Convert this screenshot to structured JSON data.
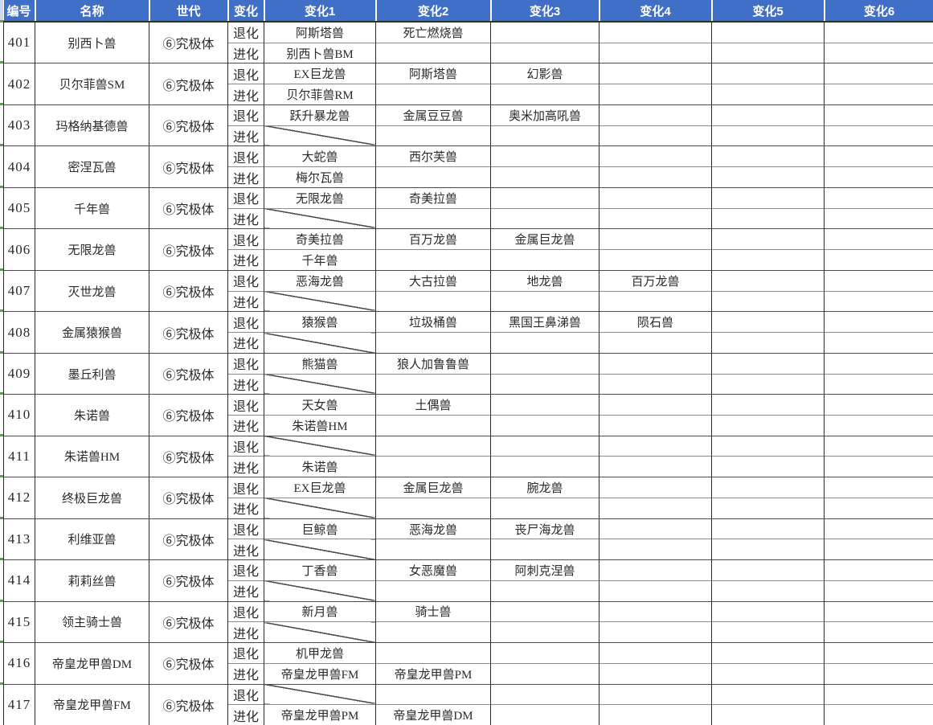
{
  "header": {
    "columns": [
      "编号",
      "名称",
      "世代",
      "变化",
      "变化1",
      "变化2",
      "变化3",
      "变化4",
      "变化5",
      "变化6"
    ]
  },
  "colors": {
    "header_bg": "#3f6fc7",
    "header_text": "#ffffff",
    "grid_dark": "#2b2b2b",
    "group_line": "#4a4a4a",
    "subrow_line": "#8a8a8a",
    "cell_text": "#2a2a2a",
    "tick_green": "#5f9e52"
  },
  "rows": [
    {
      "id": "401",
      "name": "别西卜兽",
      "gen": "⑥究极体",
      "degenerate": {
        "label": "退化",
        "diagonal": false,
        "changes": [
          "阿斯塔兽",
          "死亡燃烧兽",
          "",
          "",
          "",
          ""
        ]
      },
      "evolve": {
        "label": "进化",
        "diagonal": false,
        "changes": [
          "别西卜兽BM",
          "",
          "",
          "",
          "",
          ""
        ]
      }
    },
    {
      "id": "402",
      "name": "贝尔菲兽SM",
      "gen": "⑥究极体",
      "degenerate": {
        "label": "退化",
        "diagonal": false,
        "changes": [
          "EX巨龙兽",
          "阿斯塔兽",
          "幻影兽",
          "",
          "",
          ""
        ]
      },
      "evolve": {
        "label": "进化",
        "diagonal": false,
        "changes": [
          "贝尔菲兽RM",
          "",
          "",
          "",
          "",
          ""
        ]
      }
    },
    {
      "id": "403",
      "name": "玛格纳基德兽",
      "gen": "⑥究极体",
      "degenerate": {
        "label": "退化",
        "diagonal": false,
        "changes": [
          "跃升暴龙兽",
          "金属豆豆兽",
          "奥米加高吼兽",
          "",
          "",
          ""
        ]
      },
      "evolve": {
        "label": "进化",
        "diagonal": true,
        "changes": [
          "",
          "",
          "",
          "",
          "",
          ""
        ]
      }
    },
    {
      "id": "404",
      "name": "密涅瓦兽",
      "gen": "⑥究极体",
      "degenerate": {
        "label": "退化",
        "diagonal": false,
        "changes": [
          "大蛇兽",
          "西尔芙兽",
          "",
          "",
          "",
          ""
        ]
      },
      "evolve": {
        "label": "进化",
        "diagonal": false,
        "changes": [
          "梅尔瓦兽",
          "",
          "",
          "",
          "",
          ""
        ]
      }
    },
    {
      "id": "405",
      "name": "千年兽",
      "gen": "⑥究极体",
      "degenerate": {
        "label": "退化",
        "diagonal": false,
        "changes": [
          "无限龙兽",
          "奇美拉兽",
          "",
          "",
          "",
          ""
        ]
      },
      "evolve": {
        "label": "进化",
        "diagonal": true,
        "changes": [
          "",
          "",
          "",
          "",
          "",
          ""
        ]
      }
    },
    {
      "id": "406",
      "name": "无限龙兽",
      "gen": "⑥究极体",
      "degenerate": {
        "label": "退化",
        "diagonal": false,
        "changes": [
          "奇美拉兽",
          "百万龙兽",
          "金属巨龙兽",
          "",
          "",
          ""
        ]
      },
      "evolve": {
        "label": "进化",
        "diagonal": false,
        "changes": [
          "千年兽",
          "",
          "",
          "",
          "",
          ""
        ]
      }
    },
    {
      "id": "407",
      "name": "灭世龙兽",
      "gen": "⑥究极体",
      "degenerate": {
        "label": "退化",
        "diagonal": false,
        "changes": [
          "恶海龙兽",
          "大古拉兽",
          "地龙兽",
          "百万龙兽",
          "",
          ""
        ]
      },
      "evolve": {
        "label": "进化",
        "diagonal": true,
        "changes": [
          "",
          "",
          "",
          "",
          "",
          ""
        ]
      }
    },
    {
      "id": "408",
      "name": "金属猿猴兽",
      "gen": "⑥究极体",
      "degenerate": {
        "label": "退化",
        "diagonal": false,
        "changes": [
          "猿猴兽",
          "垃圾桶兽",
          "黑国王鼻涕兽",
          "陨石兽",
          "",
          ""
        ]
      },
      "evolve": {
        "label": "进化",
        "diagonal": true,
        "changes": [
          "",
          "",
          "",
          "",
          "",
          ""
        ]
      }
    },
    {
      "id": "409",
      "name": "墨丘利兽",
      "gen": "⑥究极体",
      "degenerate": {
        "label": "退化",
        "diagonal": false,
        "changes": [
          "熊猫兽",
          "狼人加鲁鲁兽",
          "",
          "",
          "",
          ""
        ]
      },
      "evolve": {
        "label": "进化",
        "diagonal": true,
        "changes": [
          "",
          "",
          "",
          "",
          "",
          ""
        ]
      }
    },
    {
      "id": "410",
      "name": "朱诺兽",
      "gen": "⑥究极体",
      "degenerate": {
        "label": "退化",
        "diagonal": false,
        "changes": [
          "天女兽",
          "土偶兽",
          "",
          "",
          "",
          ""
        ]
      },
      "evolve": {
        "label": "进化",
        "diagonal": false,
        "changes": [
          "朱诺兽HM",
          "",
          "",
          "",
          "",
          ""
        ]
      }
    },
    {
      "id": "411",
      "name": "朱诺兽HM",
      "gen": "⑥究极体",
      "degenerate": {
        "label": "退化",
        "diagonal": true,
        "changes": [
          "",
          "",
          "",
          "",
          "",
          ""
        ]
      },
      "evolve": {
        "label": "进化",
        "diagonal": false,
        "changes": [
          "朱诺兽",
          "",
          "",
          "",
          "",
          ""
        ]
      }
    },
    {
      "id": "412",
      "name": "终极巨龙兽",
      "gen": "⑥究极体",
      "degenerate": {
        "label": "退化",
        "diagonal": false,
        "changes": [
          "EX巨龙兽",
          "金属巨龙兽",
          "腕龙兽",
          "",
          "",
          ""
        ]
      },
      "evolve": {
        "label": "进化",
        "diagonal": true,
        "changes": [
          "",
          "",
          "",
          "",
          "",
          ""
        ]
      }
    },
    {
      "id": "413",
      "name": "利维亚兽",
      "gen": "⑥究极体",
      "degenerate": {
        "label": "退化",
        "diagonal": false,
        "changes": [
          "巨鲸兽",
          "恶海龙兽",
          "丧尸海龙兽",
          "",
          "",
          ""
        ]
      },
      "evolve": {
        "label": "进化",
        "diagonal": true,
        "changes": [
          "",
          "",
          "",
          "",
          "",
          ""
        ]
      }
    },
    {
      "id": "414",
      "name": "莉莉丝兽",
      "gen": "⑥究极体",
      "degenerate": {
        "label": "退化",
        "diagonal": false,
        "changes": [
          "丁香兽",
          "女恶魔兽",
          "阿刺克涅兽",
          "",
          "",
          ""
        ]
      },
      "evolve": {
        "label": "进化",
        "diagonal": true,
        "changes": [
          "",
          "",
          "",
          "",
          "",
          ""
        ]
      }
    },
    {
      "id": "415",
      "name": "领主骑士兽",
      "gen": "⑥究极体",
      "degenerate": {
        "label": "退化",
        "diagonal": false,
        "changes": [
          "新月兽",
          "骑士兽",
          "",
          "",
          "",
          ""
        ]
      },
      "evolve": {
        "label": "进化",
        "diagonal": true,
        "changes": [
          "",
          "",
          "",
          "",
          "",
          ""
        ]
      }
    },
    {
      "id": "416",
      "name": "帝皇龙甲兽DM",
      "gen": "⑥究极体",
      "degenerate": {
        "label": "退化",
        "diagonal": false,
        "changes": [
          "机甲龙兽",
          "",
          "",
          "",
          "",
          ""
        ]
      },
      "evolve": {
        "label": "进化",
        "diagonal": false,
        "changes": [
          "帝皇龙甲兽FM",
          "帝皇龙甲兽PM",
          "",
          "",
          "",
          ""
        ]
      }
    },
    {
      "id": "417",
      "name": "帝皇龙甲兽FM",
      "gen": "⑥究极体",
      "degenerate": {
        "label": "退化",
        "diagonal": true,
        "changes": [
          "",
          "",
          "",
          "",
          "",
          ""
        ]
      },
      "evolve": {
        "label": "进化",
        "diagonal": false,
        "changes": [
          "帝皇龙甲兽PM",
          "帝皇龙甲兽DM",
          "",
          "",
          "",
          ""
        ]
      }
    }
  ]
}
